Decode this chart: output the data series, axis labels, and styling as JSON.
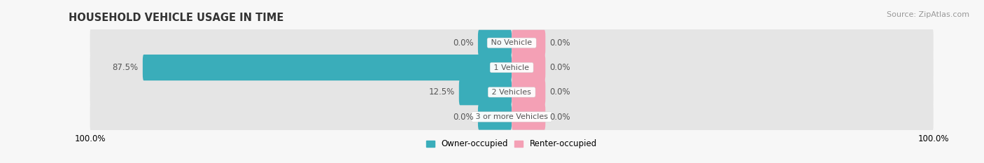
{
  "title": "HOUSEHOLD VEHICLE USAGE IN TIME",
  "source": "Source: ZipAtlas.com",
  "categories": [
    "No Vehicle",
    "1 Vehicle",
    "2 Vehicles",
    "3 or more Vehicles"
  ],
  "owner_values": [
    0.0,
    87.5,
    12.5,
    0.0
  ],
  "renter_values": [
    0.0,
    0.0,
    0.0,
    0.0
  ],
  "owner_color": "#3aadba",
  "renter_color": "#f4a0b5",
  "bg_color": "#e5e5e5",
  "fig_bg": "#f7f7f7",
  "owner_label": "Owner-occupied",
  "renter_label": "Renter-occupied",
  "xlim": 100,
  "title_fontsize": 10.5,
  "label_fontsize": 8.5,
  "legend_fontsize": 8.5,
  "source_fontsize": 8,
  "bar_height": 0.62,
  "fig_width": 14.06,
  "fig_height": 2.33,
  "dpi": 100,
  "min_bar_pct": 8
}
